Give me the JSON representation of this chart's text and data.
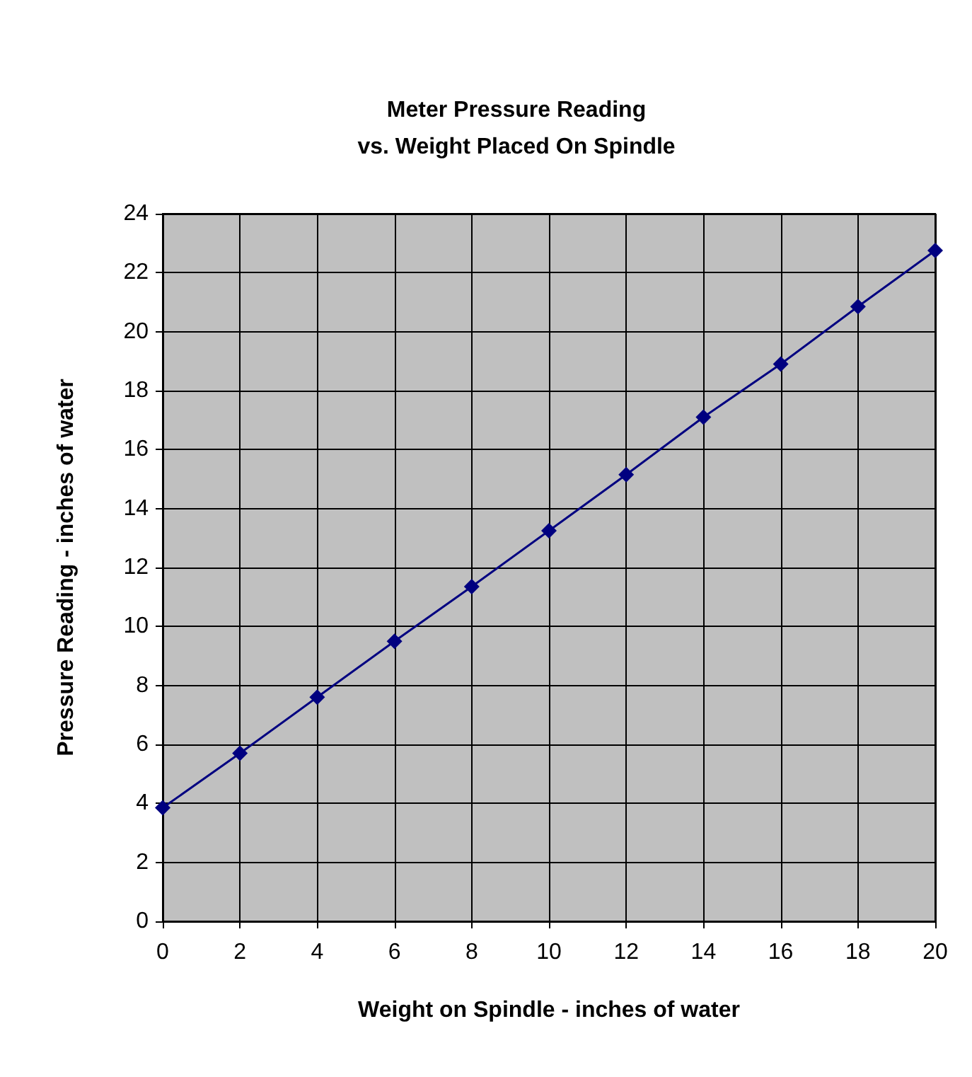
{
  "chart_data": {
    "type": "line",
    "title": "Meter Pressure Reading\nvs. Weight Placed On Spindle",
    "xlabel": "Weight on Spindle - inches of water",
    "ylabel": "Pressure Reading - inches of water",
    "x": [
      0,
      2,
      4,
      6,
      8,
      10,
      12,
      14,
      16,
      18,
      20
    ],
    "series": [
      {
        "color": "#000080",
        "values": [
          3.85,
          5.7,
          7.6,
          9.5,
          11.35,
          13.25,
          15.15,
          17.1,
          18.9,
          20.85,
          22.75
        ]
      }
    ],
    "xlim": [
      0,
      20
    ],
    "xticks": [
      0,
      2,
      4,
      6,
      8,
      10,
      12,
      14,
      16,
      18,
      20
    ],
    "ylim": [
      0,
      24
    ],
    "yticks": [
      0,
      2,
      4,
      6,
      8,
      10,
      12,
      14,
      16,
      18,
      20,
      22,
      24
    ],
    "grid": true,
    "marker": "diamond",
    "line_style": "solid"
  }
}
